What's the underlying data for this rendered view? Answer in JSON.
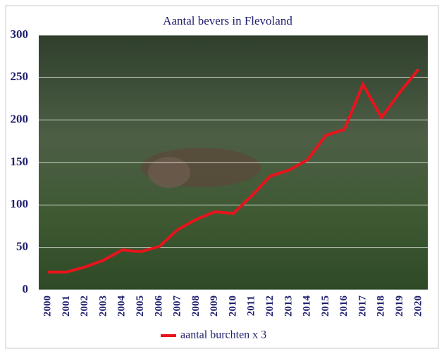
{
  "chart_data": {
    "type": "line",
    "title": "Aantal bevers in Flevoland",
    "categories": [
      "2000",
      "2001",
      "2002",
      "2003",
      "2004",
      "2005",
      "2006",
      "2007",
      "2008",
      "2009",
      "2010",
      "2011",
      "2012",
      "2013",
      "2014",
      "2015",
      "2016",
      "2017",
      "2018",
      "2019",
      "2020"
    ],
    "series": [
      {
        "name": "aantal burchten x 3",
        "color": "#e8141b",
        "values": [
          21,
          21,
          27,
          35,
          47,
          45,
          51,
          71,
          83,
          92,
          90,
          111,
          134,
          141,
          153,
          182,
          189,
          242,
          203,
          233,
          260
        ]
      }
    ],
    "ylim": [
      0,
      300
    ],
    "yticks": [
      0,
      50,
      100,
      150,
      200,
      250,
      300
    ],
    "grid": true,
    "legend": "bottom"
  }
}
